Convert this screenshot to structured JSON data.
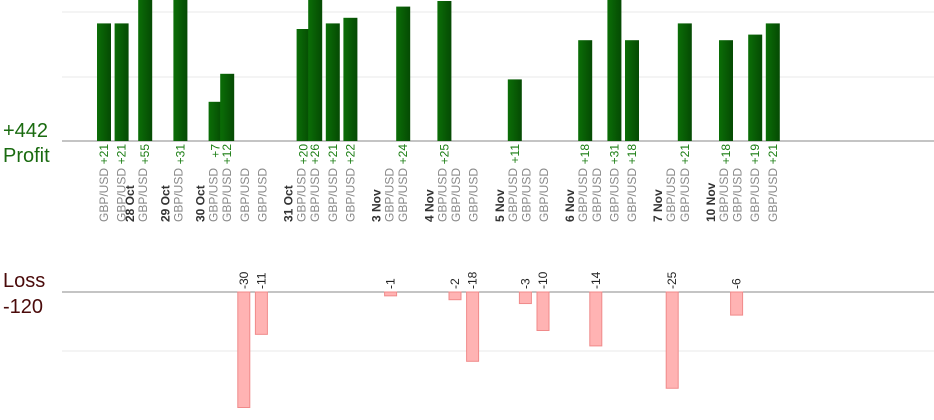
{
  "summary": {
    "profit_total": "+442",
    "profit_label": "Profit",
    "loss_label": "Loss",
    "loss_total": "-120"
  },
  "colors": {
    "profit_bar": "#0a5e06",
    "profit_text": "#1a7d12",
    "loss_bar": "#ffb3b3",
    "loss_border": "#f08a8a",
    "loss_text": "#222222",
    "grid": "#e8e8e8",
    "baseline": "#888888",
    "date_text": "#333333",
    "pair_text": "#888888"
  },
  "chart_data": {
    "type": "bar",
    "columns": [
      {
        "kind": "trade",
        "pair": "GBP/USD",
        "value": 21
      },
      {
        "kind": "trade",
        "pair": "GBP/USD",
        "value": 21
      },
      {
        "kind": "date",
        "label": "28 Oct",
        "pair": "GBP/USD",
        "value": 55
      },
      {
        "kind": "gap"
      },
      {
        "kind": "date",
        "label": "29 Oct",
        "pair": "GBP/USD",
        "value": 31
      },
      {
        "kind": "gap"
      },
      {
        "kind": "date",
        "label": "30 Oct",
        "pair": "GBP/USD",
        "value": 7
      },
      {
        "kind": "trade",
        "pair": "GBP/USD",
        "value": 12
      },
      {
        "kind": "trade",
        "pair": "GBP/USD",
        "value": -30
      },
      {
        "kind": "trade",
        "pair": "GBP/USD",
        "value": -11
      },
      {
        "kind": "gap"
      },
      {
        "kind": "date",
        "label": "31 Oct",
        "pair": "GBP/USD",
        "value": 20
      },
      {
        "kind": "trade",
        "pair": "GBP/USD",
        "value": 26
      },
      {
        "kind": "trade",
        "pair": "GBP/USD",
        "value": 21
      },
      {
        "kind": "trade",
        "pair": "GBP/USD",
        "value": 22
      },
      {
        "kind": "gap"
      },
      {
        "kind": "date",
        "label": "3 Nov",
        "pair": "GBP/USD",
        "value": -1
      },
      {
        "kind": "trade",
        "pair": "GBP/USD",
        "value": 24
      },
      {
        "kind": "gap"
      },
      {
        "kind": "date",
        "label": "4 Nov",
        "pair": "GBP/USD",
        "value": 25
      },
      {
        "kind": "trade",
        "pair": "GBP/USD",
        "value": -2
      },
      {
        "kind": "trade",
        "pair": "GBP/USD",
        "value": -18
      },
      {
        "kind": "gap"
      },
      {
        "kind": "date",
        "label": "5 Nov",
        "pair": "GBP/USD",
        "value": 11
      },
      {
        "kind": "trade",
        "pair": "GBP/USD",
        "value": -3
      },
      {
        "kind": "trade",
        "pair": "GBP/USD",
        "value": -10
      },
      {
        "kind": "gap"
      },
      {
        "kind": "date",
        "label": "6 Nov",
        "pair": "GBP/USD",
        "value": 18
      },
      {
        "kind": "trade",
        "pair": "GBP/USD",
        "value": -14
      },
      {
        "kind": "trade",
        "pair": "GBP/USD",
        "value": 31
      },
      {
        "kind": "trade",
        "pair": "GBP/USD",
        "value": 18
      },
      {
        "kind": "gap"
      },
      {
        "kind": "date",
        "label": "7 Nov",
        "pair": "GBP/USD",
        "value": -25
      },
      {
        "kind": "trade",
        "pair": "GBP/USD",
        "value": 21
      },
      {
        "kind": "gap"
      },
      {
        "kind": "date",
        "label": "10 Nov",
        "pair": "GBP/USD",
        "value": 18
      },
      {
        "kind": "trade",
        "pair": "GBP/USD",
        "value": -6
      },
      {
        "kind": "trade",
        "pair": "GBP/USD",
        "value": 19
      },
      {
        "kind": "trade",
        "pair": "GBP/USD",
        "value": 21
      }
    ],
    "profit_scale_max": 24,
    "loss_scale_max": 20
  }
}
